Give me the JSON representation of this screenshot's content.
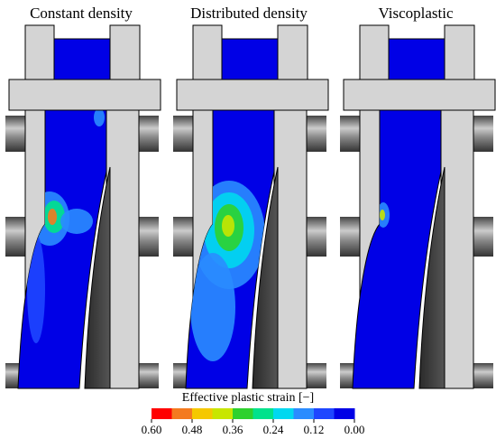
{
  "panels": [
    {
      "title": "Constant density"
    },
    {
      "title": "Distributed density"
    },
    {
      "title": "Viscoplastic"
    }
  ],
  "colorbar": {
    "label": "Effective plastic strain [−]",
    "ticks": [
      "0.60",
      "0.48",
      "0.36",
      "0.24",
      "0.12",
      "0.00"
    ],
    "colors": [
      "#ff0000",
      "#f47a1f",
      "#f5c800",
      "#c8e600",
      "#2ed12e",
      "#00e28c",
      "#00d8f0",
      "#2a8cff",
      "#1e46ff",
      "#0000e6"
    ]
  }
}
